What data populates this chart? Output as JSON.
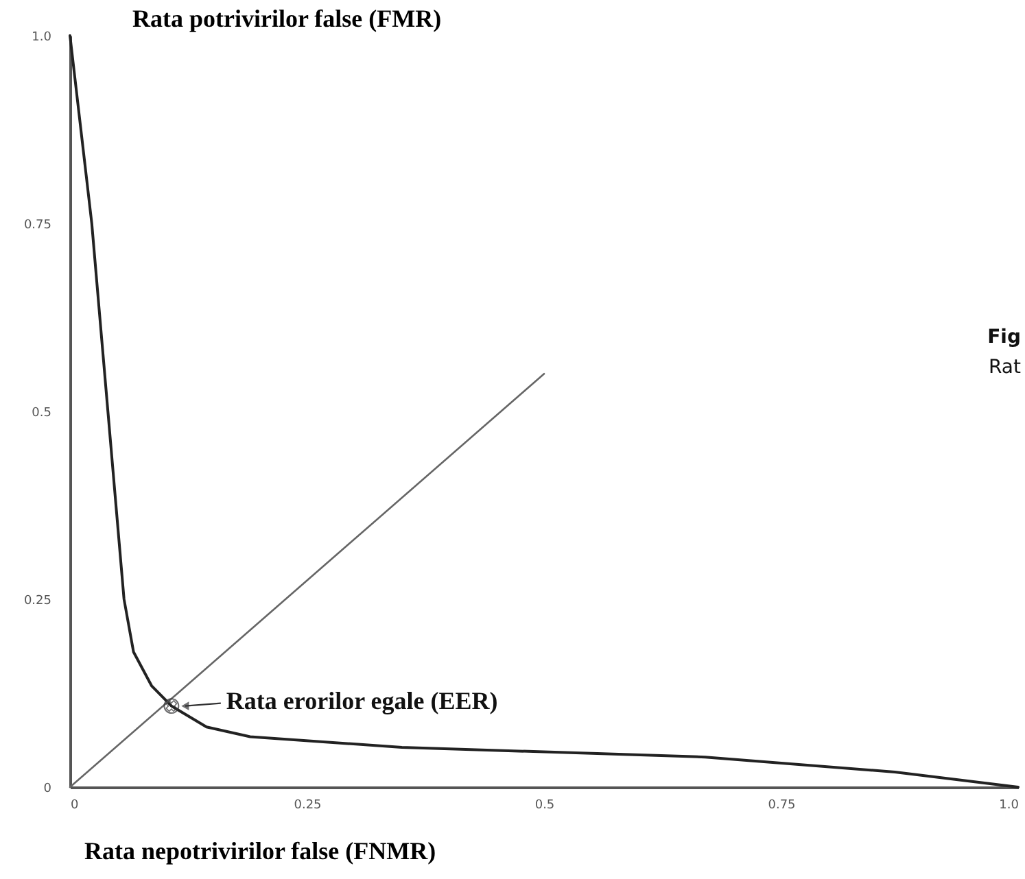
{
  "chart_data": {
    "type": "line",
    "xlabel": "Rata nepotrivirilor false (FNMR)",
    "ylabel": "Rata potrivirilor false (FMR)",
    "xlim": [
      0,
      1
    ],
    "ylim": [
      0,
      1
    ],
    "xticks": [
      0,
      0.25,
      0.5,
      0.75,
      {
        "value": 1,
        "label": "1.0"
      }
    ],
    "yticks": [
      0,
      0.25,
      0.5,
      0.75,
      {
        "value": 1,
        "label": "1.0"
      }
    ],
    "grid": false,
    "marker": "none",
    "line_style": "solid",
    "series": [
      {
        "color": "#222222",
        "x": [
          0,
          0.023,
          0.04,
          0.057,
          0.067,
          0.086,
          0.107,
          0.144,
          0.19,
          0.35,
          0.67,
          0.87,
          1
        ],
        "values": [
          1,
          0.75,
          0.5,
          0.25,
          0.18,
          0.135,
          0.108,
          0.08,
          0.067,
          0.053,
          0.04,
          0.02,
          0
        ]
      },
      {
        "color": "#666666",
        "x": [
          0,
          0.5
        ],
        "values": [
          0,
          0.55
        ]
      }
    ],
    "annotations": [
      {
        "text": "Rata erorilor egale (EER)",
        "x": 0.107,
        "y": 0.108
      },
      "Fig",
      "Rat"
    ]
  }
}
